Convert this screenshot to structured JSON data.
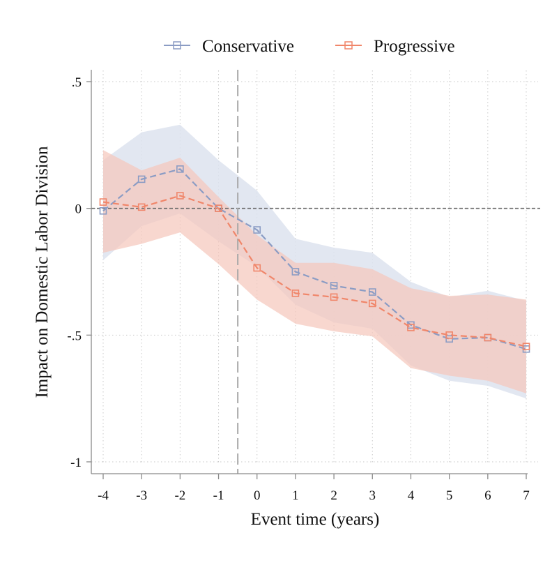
{
  "chart_data": {
    "type": "line",
    "xlabel": "Event time (years)",
    "ylabel": "Impact on Domestic Labor Division",
    "x": [
      -4,
      -3,
      -2,
      -1,
      0,
      1,
      2,
      3,
      4,
      5,
      6,
      7
    ],
    "xlim": [
      -4,
      7
    ],
    "ylim": [
      -1,
      0.5
    ],
    "yticks": [
      0.5,
      0,
      -0.5,
      -1
    ],
    "ytick_labels": [
      ".5",
      "0",
      "-.5",
      "-1"
    ],
    "xtick_labels": [
      "-4",
      "-3",
      "-2",
      "-1",
      "0",
      "1",
      "2",
      "3",
      "4",
      "5",
      "6",
      "7"
    ],
    "grid": true,
    "legend_position": "top",
    "reference_lines": {
      "vertical_x": -0.5,
      "horizontal_y": 0
    },
    "series": [
      {
        "name": "Conservative",
        "color": "#8b9cc4",
        "band_color": "#dde3ef",
        "values": [
          -0.01,
          0.115,
          0.155,
          0.0,
          -0.085,
          -0.25,
          -0.305,
          -0.33,
          -0.46,
          -0.515,
          -0.51,
          -0.555
        ],
        "ci_lower": [
          -0.205,
          -0.07,
          -0.02,
          -0.13,
          -0.23,
          -0.38,
          -0.45,
          -0.475,
          -0.62,
          -0.68,
          -0.7,
          -0.75
        ],
        "ci_upper": [
          0.19,
          0.3,
          0.33,
          0.19,
          0.07,
          -0.12,
          -0.155,
          -0.175,
          -0.29,
          -0.35,
          -0.325,
          -0.365
        ]
      },
      {
        "name": "Progressive",
        "color": "#f0866a",
        "band_color": "#f5c8bd",
        "values": [
          0.025,
          0.005,
          0.05,
          0.0,
          -0.235,
          -0.335,
          -0.35,
          -0.375,
          -0.47,
          -0.5,
          -0.51,
          -0.545
        ],
        "ci_lower": [
          -0.175,
          -0.14,
          -0.095,
          -0.22,
          -0.36,
          -0.455,
          -0.485,
          -0.505,
          -0.63,
          -0.66,
          -0.68,
          -0.73
        ],
        "ci_upper": [
          0.23,
          0.15,
          0.2,
          0.045,
          -0.105,
          -0.215,
          -0.215,
          -0.24,
          -0.315,
          -0.345,
          -0.34,
          -0.36
        ]
      }
    ]
  }
}
